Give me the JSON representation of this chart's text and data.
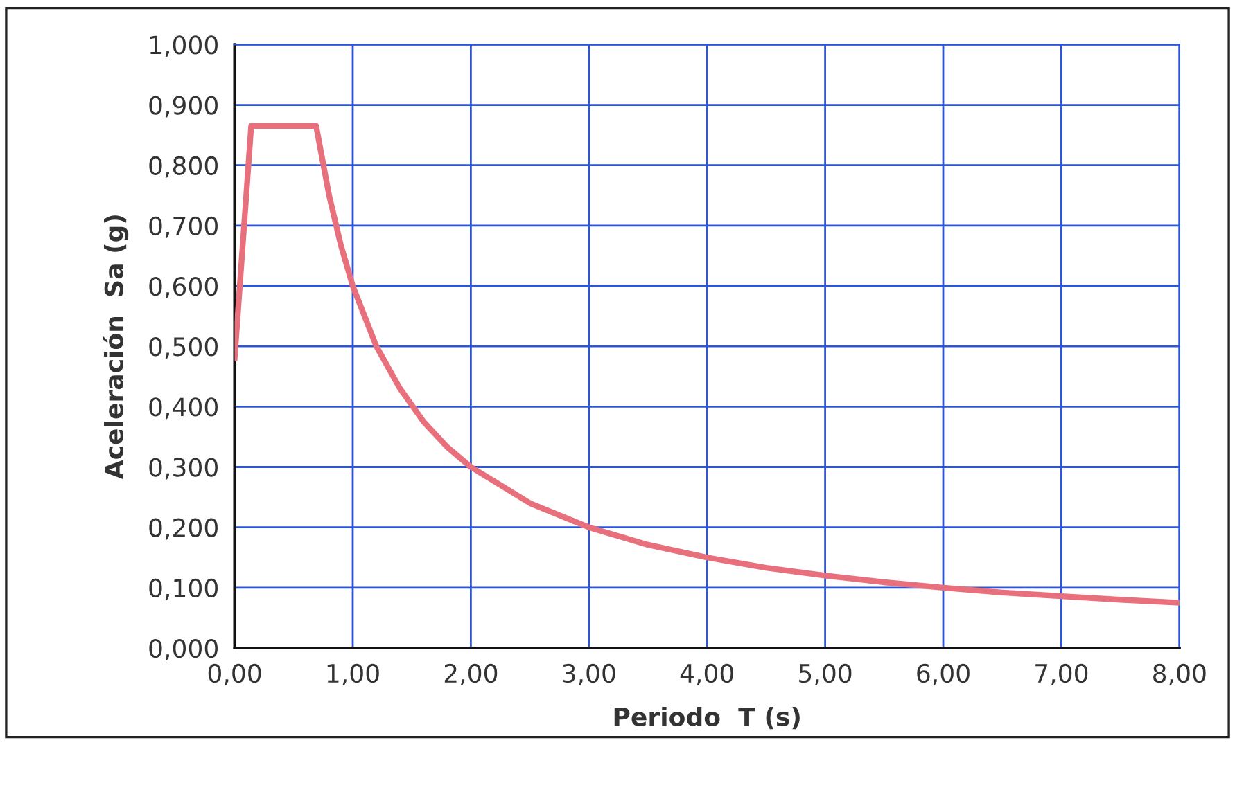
{
  "chart_data": {
    "type": "line",
    "xlabel": "Periodo  T (s)",
    "ylabel": "Aceleración  Sa (g)",
    "series": [
      {
        "color": "#e8707c",
        "x": [
          0,
          0.14,
          0.69,
          0.8,
          0.9,
          1.0,
          1.2,
          1.4,
          1.6,
          1.8,
          2.0,
          2.5,
          3.0,
          3.5,
          4.0,
          4.5,
          5.0,
          5.5,
          6.0,
          6.5,
          7.0,
          7.5,
          8.0
        ],
        "values": [
          0.48,
          0.865,
          0.865,
          0.75,
          0.667,
          0.6,
          0.5,
          0.43,
          0.375,
          0.333,
          0.3,
          0.24,
          0.2,
          0.171,
          0.15,
          0.133,
          0.12,
          0.109,
          0.1,
          0.092,
          0.086,
          0.08,
          0.075
        ]
      }
    ],
    "xlim": [
      0,
      8
    ],
    "ylim": [
      0,
      1
    ],
    "xticks": [
      {
        "value": 0,
        "label": "0,00"
      },
      {
        "value": 1,
        "label": "1,00"
      },
      {
        "value": 2,
        "label": "2,00"
      },
      {
        "value": 3,
        "label": "3,00"
      },
      {
        "value": 4,
        "label": "4,00"
      },
      {
        "value": 5,
        "label": "5,00"
      },
      {
        "value": 6,
        "label": "6,00"
      },
      {
        "value": 7,
        "label": "7,00"
      },
      {
        "value": 8,
        "label": "8,00"
      }
    ],
    "yticks": [
      {
        "value": 0,
        "label": "0,000"
      },
      {
        "value": 0.1,
        "label": "0,100"
      },
      {
        "value": 0.2,
        "label": "0,200"
      },
      {
        "value": 0.3,
        "label": "0,300"
      },
      {
        "value": 0.4,
        "label": "0,400"
      },
      {
        "value": 0.5,
        "label": "0,500"
      },
      {
        "value": 0.6,
        "label": "0,600"
      },
      {
        "value": 0.7,
        "label": "0,700"
      },
      {
        "value": 0.8,
        "label": "0,800"
      },
      {
        "value": 0.9,
        "label": "0,900"
      },
      {
        "value": 1,
        "label": "1,000"
      }
    ],
    "grid": true,
    "marker": "none",
    "line_style": "solid"
  }
}
